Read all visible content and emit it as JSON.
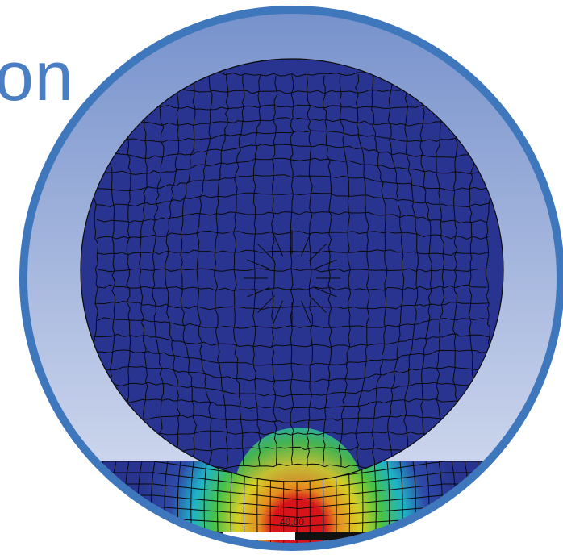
{
  "slide": {
    "title_fragment": "on"
  },
  "viewport": {
    "scale_label": "40.00",
    "colors": {
      "frame_ring": "#3f77bd",
      "background_top": "#7590cb",
      "background_bottom": "#dde3f3",
      "ball_fill": "#28348f",
      "mesh_line": "#0a0a0a",
      "contour_high": "#d6141a",
      "contour_mid_high": "#e58c1f",
      "contour_mid": "#d6cf28",
      "contour_mid_low": "#49c247",
      "contour_low": "#1fb3c7",
      "contour_base": "#2e4aa8"
    }
  }
}
